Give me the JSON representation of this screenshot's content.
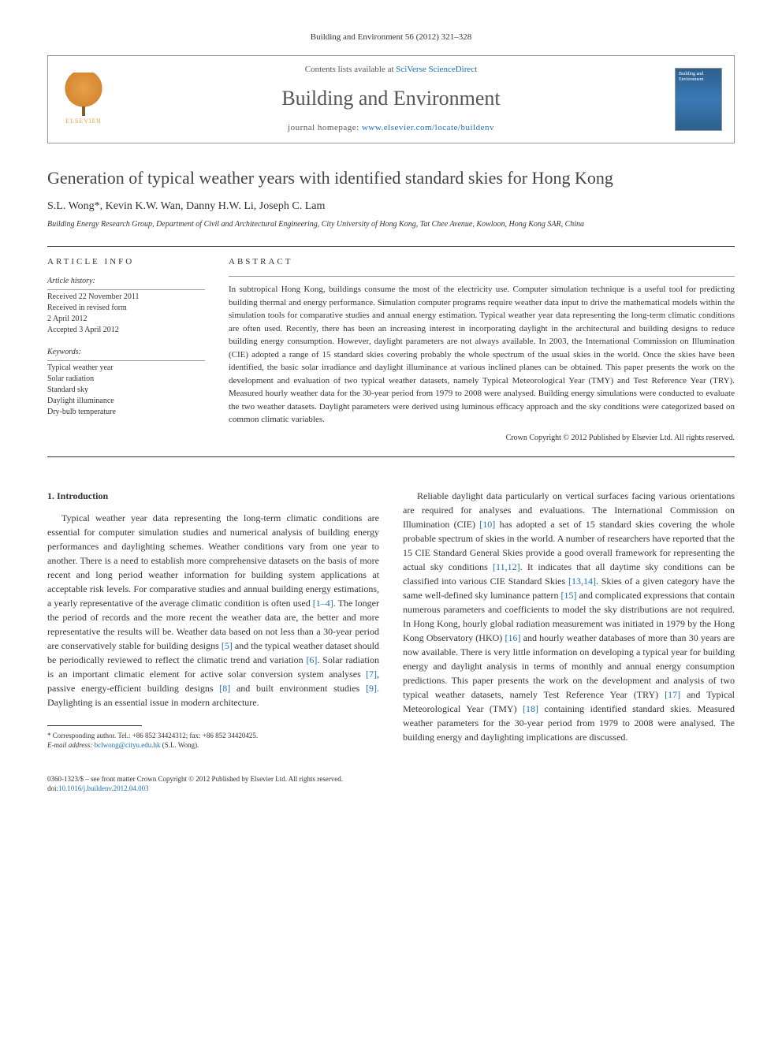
{
  "header": {
    "citation": "Building and Environment 56 (2012) 321–328",
    "contents_prefix": "Contents lists available at ",
    "contents_link": "SciVerse ScienceDirect",
    "journal_name": "Building and Environment",
    "homepage_prefix": "journal homepage: ",
    "homepage_link": "www.elsevier.com/locate/buildenv",
    "publisher_label": "ELSEVIER",
    "cover_label": "Building and Environment"
  },
  "article": {
    "title": "Generation of typical weather years with identified standard skies for Hong Kong",
    "authors": "S.L. Wong*, Kevin K.W. Wan, Danny H.W. Li, Joseph C. Lam",
    "affiliation": "Building Energy Research Group, Department of Civil and Architectural Engineering, City University of Hong Kong, Tat Chee Avenue, Kowloon, Hong Kong SAR, China"
  },
  "article_info": {
    "heading": "ARTICLE INFO",
    "history_heading": "Article history:",
    "history": [
      "Received 22 November 2011",
      "Received in revised form",
      "2 April 2012",
      "Accepted 3 April 2012"
    ],
    "keywords_heading": "Keywords:",
    "keywords": [
      "Typical weather year",
      "Solar radiation",
      "Standard sky",
      "Daylight illuminance",
      "Dry-bulb temperature"
    ]
  },
  "abstract": {
    "heading": "ABSTRACT",
    "text": "In subtropical Hong Kong, buildings consume the most of the electricity use. Computer simulation technique is a useful tool for predicting building thermal and energy performance. Simulation computer programs require weather data input to drive the mathematical models within the simulation tools for comparative studies and annual energy estimation. Typical weather year data representing the long-term climatic conditions are often used. Recently, there has been an increasing interest in incorporating daylight in the architectural and building designs to reduce building energy consumption. However, daylight parameters are not always available. In 2003, the International Commission on Illumination (CIE) adopted a range of 15 standard skies covering probably the whole spectrum of the usual skies in the world. Once the skies have been identified, the basic solar irradiance and daylight illuminance at various inclined planes can be obtained. This paper presents the work on the development and evaluation of two typical weather datasets, namely Typical Meteorological Year (TMY) and Test Reference Year (TRY). Measured hourly weather data for the 30-year period from 1979 to 2008 were analysed. Building energy simulations were conducted to evaluate the two weather datasets. Daylight parameters were derived using luminous efficacy approach and the sky conditions were categorized based on common climatic variables.",
    "copyright": "Crown Copyright © 2012 Published by Elsevier Ltd. All rights reserved."
  },
  "body": {
    "section_heading": "1. Introduction",
    "col1_p1_a": "Typical weather year data representing the long-term climatic conditions are essential for computer simulation studies and numerical analysis of building energy performances and daylighting schemes. Weather conditions vary from one year to another. There is a need to establish more comprehensive datasets on the basis of more recent and long period weather information for building system applications at acceptable risk levels. For comparative studies and annual building energy estimations, a yearly representative of the average climatic condition is often used ",
    "ref_1_4": "[1–4]",
    "col1_p1_b": ". The longer the period of records and the more recent the weather data are, the better and more representative the results will be. Weather data based on not less than a 30-year period are conservatively stable for building designs ",
    "ref_5": "[5]",
    "col1_p1_c": " and the typical weather dataset should be periodically reviewed to reflect the climatic trend and variation ",
    "ref_6": "[6]",
    "col1_p1_d": ". Solar radiation is an important climatic element for active solar conversion system analyses ",
    "ref_7": "[7]",
    "col1_p1_e": ", passive energy-efficient building designs ",
    "ref_8": "[8]",
    "col1_p1_f": " and built environment studies ",
    "ref_9": "[9]",
    "col1_p1_g": ". Daylighting is an essential issue in modern architecture.",
    "col2_p1_a": "Reliable daylight data particularly on vertical surfaces facing various orientations are required for analyses and evaluations. The International Commission on Illumination (CIE) ",
    "ref_10": "[10]",
    "col2_p1_b": " has adopted a set of 15 standard skies covering the whole probable spectrum of skies in the world. A number of researchers have reported that the 15 CIE Standard General Skies provide a good overall framework for representing the actual sky conditions ",
    "ref_11_12": "[11,12]",
    "col2_p1_c": ". It indicates that all daytime sky conditions can be classified into various CIE Standard Skies ",
    "ref_13_14": "[13,14]",
    "col2_p1_d": ". Skies of a given category have the same well-defined sky luminance pattern ",
    "ref_15": "[15]",
    "col2_p1_e": " and complicated expressions that contain numerous parameters and coefficients to model the sky distributions are not required. In Hong Kong, hourly global radiation measurement was initiated in 1979 by the Hong Kong Observatory (HKO) ",
    "ref_16": "[16]",
    "col2_p1_f": " and hourly weather databases of more than 30 years are now available. There is very little information on developing a typical year for building energy and daylight analysis in terms of monthly and annual energy consumption predictions. This paper presents the work on the development and analysis of two typical weather datasets, namely Test Reference Year (TRY) ",
    "ref_17": "[17]",
    "col2_p1_g": " and Typical Meteorological Year (TMY) ",
    "ref_18": "[18]",
    "col2_p1_h": " containing identified standard skies. Measured weather parameters for the 30-year period from 1979 to 2008 were analysed. The building energy and daylighting implications are discussed."
  },
  "footnote": {
    "corresponding": "* Corresponding author. Tel.: +86 852 34424312; fax: +86 852 34420425.",
    "email_label": "E-mail address: ",
    "email": "bclwong@cityu.edu.hk",
    "email_suffix": " (S.L. Wong)."
  },
  "footer": {
    "issn_line": "0360-1323/$ – see front matter Crown Copyright © 2012 Published by Elsevier Ltd. All rights reserved.",
    "doi_prefix": "doi:",
    "doi": "10.1016/j.buildenv.2012.04.003"
  }
}
